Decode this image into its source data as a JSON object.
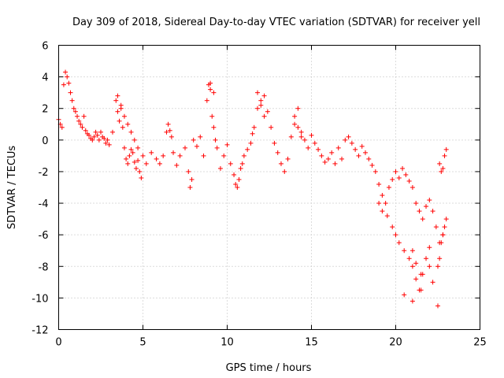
{
  "chart_data": {
    "type": "scatter",
    "title": "Day 309 of 2018, Sidereal Day-to-day VTEC variation (SDTVAR) for receiver yell",
    "xlabel": "GPS time / hours",
    "ylabel": "SDTVAR / TECUs",
    "xlim": [
      0,
      25
    ],
    "ylim": [
      -12,
      6
    ],
    "xticks": [
      "0",
      "5",
      "10",
      "15",
      "20",
      "25"
    ],
    "yticks": [
      "6",
      "4",
      "2",
      "0",
      "-2",
      "-4",
      "-6",
      "-8",
      "-10",
      "-12"
    ],
    "grid": true,
    "marker": "+",
    "color": "#ff0000",
    "series": [
      {
        "name": "SDTVAR",
        "x": [
          0.0,
          0.1,
          0.2,
          0.3,
          0.4,
          0.5,
          0.6,
          0.7,
          0.8,
          0.9,
          1.0,
          1.1,
          1.2,
          1.3,
          1.4,
          1.5,
          1.6,
          1.7,
          1.8,
          1.9,
          2.0,
          2.1,
          2.2,
          2.3,
          2.4,
          2.5,
          2.6,
          2.7,
          2.8,
          2.9,
          3.0,
          3.2,
          3.4,
          3.5,
          3.6,
          3.7,
          3.8,
          3.9,
          4.0,
          4.1,
          4.2,
          4.3,
          4.4,
          4.5,
          4.6,
          4.7,
          4.8,
          4.9,
          5.0,
          5.2,
          5.5,
          5.8,
          6.0,
          6.2,
          6.4,
          6.5,
          6.6,
          6.7,
          6.8,
          7.0,
          7.2,
          7.5,
          7.7,
          7.8,
          7.9,
          8.0,
          8.2,
          8.4,
          8.6,
          8.8,
          8.9,
          9.0,
          9.1,
          9.2,
          9.3,
          9.4,
          9.6,
          9.8,
          10.0,
          10.2,
          10.4,
          10.5,
          10.6,
          10.7,
          10.8,
          10.9,
          11.0,
          11.2,
          11.4,
          11.5,
          11.6,
          11.8,
          12.0,
          12.2,
          12.4,
          12.6,
          12.8,
          13.0,
          13.2,
          13.4,
          13.6,
          13.8,
          14.0,
          14.2,
          14.4,
          14.6,
          14.8,
          15.0,
          15.2,
          15.4,
          15.6,
          15.8,
          16.0,
          16.2,
          16.4,
          16.6,
          16.8,
          17.0,
          17.2,
          17.4,
          17.6,
          17.8,
          18.0,
          18.2,
          18.4,
          18.6,
          18.8,
          19.0,
          19.2,
          19.4,
          19.6,
          19.8,
          20.0,
          20.2,
          20.4,
          20.6,
          20.8,
          21.0,
          21.2,
          21.4,
          21.6,
          21.8,
          22.0,
          22.2,
          22.4,
          22.6,
          22.8,
          23.0,
          19.0,
          19.2,
          19.5,
          19.8,
          20.0,
          20.2,
          20.5,
          20.8,
          21.0,
          21.2,
          21.4,
          21.6,
          21.8,
          22.0,
          22.2,
          22.5,
          22.6,
          22.7,
          22.8,
          22.9,
          3.5,
          3.7,
          3.9,
          4.1,
          4.3,
          4.5,
          4.7,
          9.0,
          9.2,
          11.8,
          12.0,
          12.2,
          14.0,
          14.2,
          14.4,
          20.5,
          21.0,
          21.5,
          22.5,
          22.6,
          22.7,
          22.8,
          22.9,
          23.0,
          21.0,
          21.2,
          21.5,
          22.0
        ],
        "y": [
          1.3,
          1.0,
          0.8,
          3.5,
          4.3,
          4.0,
          3.6,
          3.0,
          2.5,
          2.0,
          1.8,
          1.5,
          1.2,
          1.0,
          0.8,
          1.5,
          0.6,
          0.4,
          0.3,
          0.1,
          0.0,
          0.2,
          0.5,
          0.3,
          0.0,
          0.5,
          0.2,
          0.1,
          -0.2,
          0.0,
          -0.3,
          0.5,
          2.5,
          1.8,
          1.2,
          2.0,
          0.8,
          -0.5,
          -1.2,
          -1.5,
          -1.0,
          -0.6,
          -0.8,
          -1.4,
          -1.8,
          -1.3,
          -2.0,
          -2.4,
          -1.0,
          -1.5,
          -0.8,
          -1.2,
          -1.5,
          -1.0,
          0.5,
          1.0,
          0.6,
          0.2,
          -0.8,
          -1.6,
          -1.0,
          -0.5,
          -2.0,
          -3.0,
          -2.5,
          0.0,
          -0.4,
          0.2,
          -1.0,
          2.5,
          3.5,
          3.2,
          1.5,
          0.8,
          0.0,
          -0.5,
          -1.8,
          -1.0,
          -0.3,
          -1.5,
          -2.2,
          -2.8,
          -3.0,
          -2.5,
          -1.8,
          -1.5,
          -1.0,
          -0.6,
          -0.2,
          0.4,
          0.8,
          2.0,
          2.5,
          2.8,
          1.8,
          0.8,
          -0.2,
          -0.8,
          -1.5,
          -2.0,
          -1.2,
          0.2,
          1.0,
          2.0,
          0.5,
          0.0,
          -0.5,
          0.3,
          -0.2,
          -0.6,
          -1.0,
          -1.4,
          -1.2,
          -0.8,
          -1.5,
          -0.5,
          -1.2,
          0.0,
          0.2,
          -0.2,
          -0.6,
          -1.0,
          -0.4,
          -0.8,
          -1.2,
          -1.6,
          -2.0,
          -2.8,
          -3.5,
          -4.0,
          -3.0,
          -2.5,
          -2.0,
          -2.4,
          -1.8,
          -2.2,
          -2.6,
          -3.0,
          -4.0,
          -4.5,
          -5.0,
          -4.2,
          -3.8,
          -4.5,
          -5.5,
          -6.5,
          -6.0,
          -5.0,
          -4.0,
          -4.5,
          -4.8,
          -5.5,
          -6.0,
          -6.5,
          -7.0,
          -7.5,
          -8.0,
          -8.8,
          -9.5,
          -8.5,
          -7.5,
          -8.0,
          -9.0,
          -8.0,
          -7.5,
          -6.5,
          -6.0,
          -5.5,
          2.8,
          2.2,
          1.5,
          1.0,
          0.5,
          0.0,
          -0.5,
          3.6,
          3.0,
          3.0,
          2.2,
          1.5,
          1.5,
          0.8,
          0.2,
          -9.8,
          -10.2,
          -9.5,
          -10.5,
          -1.5,
          -2.0,
          -1.8,
          -1.0,
          -0.6,
          -7.0,
          -7.8,
          -8.5,
          -6.8
        ]
      }
    ]
  }
}
